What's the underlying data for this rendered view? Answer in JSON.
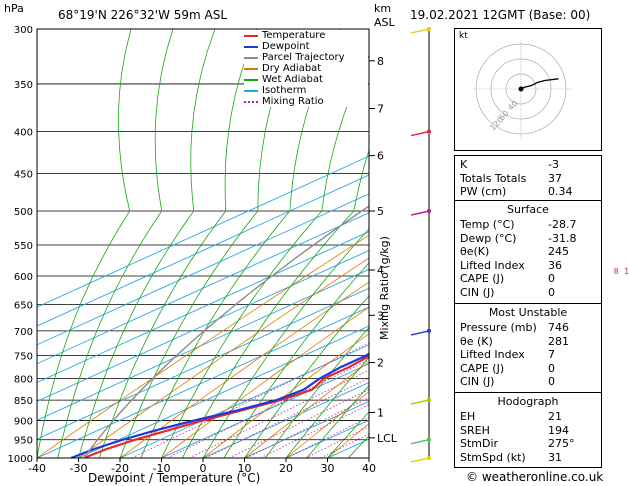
{
  "header": {
    "hpa_label": "hPa",
    "location": "68°19'N  226°32'W  59m  ASL",
    "km_label": "km",
    "asl_label": "ASL",
    "datetime": "19.02.2021 12GMT (Base: 00)"
  },
  "footer": {
    "credit": "© weatheronline.co.uk"
  },
  "legend": [
    {
      "label": "Temperature",
      "color": "#e8272c"
    },
    {
      "label": "Dewpoint",
      "color": "#2139d4"
    },
    {
      "label": "Parcel Trajectory",
      "color": "#8c8c8c"
    },
    {
      "label": "Dry Adiabat",
      "color": "#e07b00"
    },
    {
      "label": "Wet Adiabat",
      "color": "#15a815"
    },
    {
      "label": "Isotherm",
      "color": "#27a7e0"
    },
    {
      "label": "Mixing Ratio",
      "color": "#c01c9c"
    }
  ],
  "chart_data": {
    "type": "line",
    "xlabel": "Dewpoint / Temperature (°C)",
    "ylabel_right": "Mixing Ratio (g/kg)",
    "x_ticks": [
      -40,
      -30,
      -20,
      -10,
      0,
      10,
      20,
      30,
      40
    ],
    "xlim": [
      -40,
      40
    ],
    "pressure_levels": [
      300,
      350,
      400,
      450,
      500,
      550,
      600,
      650,
      700,
      750,
      800,
      850,
      900,
      950,
      1000
    ],
    "ylim_hpa": [
      1000,
      300
    ],
    "km_ticks": [
      {
        "label": "8",
        "p": 328
      },
      {
        "label": "7",
        "p": 375
      },
      {
        "label": "6",
        "p": 428
      },
      {
        "label": "5",
        "p": 500
      },
      {
        "label": "4",
        "p": 590
      },
      {
        "label": "3",
        "p": 670
      },
      {
        "label": "2",
        "p": 765
      },
      {
        "label": "1",
        "p": 880
      },
      {
        "label": "LCL",
        "p": 945
      }
    ],
    "mixing_ratio_labels": [
      {
        "label": "1",
        "value": 1
      },
      {
        "label": "2",
        "value": 2
      },
      {
        "label": "3",
        "value": 3
      },
      {
        "label": "4",
        "value": 4
      },
      {
        "label": "6",
        "value": 6
      },
      {
        "label": "8",
        "value": 8
      },
      {
        "label": "10",
        "value": 10
      },
      {
        "label": "15",
        "value": 15
      },
      {
        "label": "20",
        "value": 20
      },
      {
        "label": "25",
        "value": 25
      }
    ],
    "series": [
      {
        "name": "Temperature",
        "color": "#e8272c",
        "points": [
          [
            1000,
            -28.7
          ],
          [
            975,
            -28
          ],
          [
            950,
            -26
          ],
          [
            925,
            -23
          ],
          [
            900,
            -20
          ],
          [
            875,
            -16
          ],
          [
            850,
            -12
          ],
          [
            825,
            -10
          ],
          [
            800,
            -13
          ],
          [
            775,
            -13
          ],
          [
            750,
            -14
          ],
          [
            725,
            -15
          ],
          [
            700,
            -17
          ],
          [
            650,
            -22
          ],
          [
            600,
            -27
          ],
          [
            550,
            -33
          ],
          [
            500,
            -38
          ],
          [
            450,
            -43
          ],
          [
            400,
            -48
          ],
          [
            350,
            -54
          ],
          [
            300,
            -59
          ]
        ]
      },
      {
        "name": "Dewpoint",
        "color": "#2139d4",
        "points": [
          [
            1000,
            -31.8
          ],
          [
            975,
            -31
          ],
          [
            950,
            -29
          ],
          [
            925,
            -26
          ],
          [
            900,
            -22
          ],
          [
            875,
            -17
          ],
          [
            850,
            -13
          ],
          [
            825,
            -12
          ],
          [
            800,
            -14
          ],
          [
            775,
            -15
          ],
          [
            750,
            -15
          ],
          [
            725,
            -17
          ],
          [
            700,
            -20
          ],
          [
            650,
            -25
          ],
          [
            600,
            -30
          ],
          [
            550,
            -36
          ],
          [
            500,
            -42
          ],
          [
            450,
            -47
          ],
          [
            400,
            -53
          ],
          [
            350,
            -58
          ],
          [
            300,
            -63
          ]
        ]
      }
    ],
    "winds_y_p": [
      300,
      400,
      500,
      700,
      850,
      950,
      1000
    ]
  },
  "hodograph": {
    "unit_label": "kt",
    "ring_labels": [
      "40",
      "60",
      "120"
    ],
    "points": [
      [
        0,
        0
      ],
      [
        2,
        1
      ],
      [
        6,
        2
      ],
      [
        10,
        4
      ],
      [
        14,
        5
      ],
      [
        22,
        6
      ]
    ]
  },
  "indices": {
    "rows": [
      {
        "k": "K",
        "v": "-3"
      },
      {
        "k": "Totals Totals",
        "v": "37"
      },
      {
        "k": "PW (cm)",
        "v": "0.34"
      }
    ]
  },
  "surface": {
    "title": "Surface",
    "rows": [
      {
        "k": "Temp (°C)",
        "v": "-28.7"
      },
      {
        "k": "Dewp (°C)",
        "v": "-31.8"
      },
      {
        "k": "θe(K)",
        "v": "245"
      },
      {
        "k": "Lifted Index",
        "v": "36"
      },
      {
        "k": "CAPE (J)",
        "v": "0"
      },
      {
        "k": "CIN (J)",
        "v": "0"
      }
    ]
  },
  "most_unstable": {
    "title": "Most Unstable",
    "rows": [
      {
        "k": "Pressure (mb)",
        "v": "746"
      },
      {
        "k": "θe (K)",
        "v": "281"
      },
      {
        "k": "Lifted Index",
        "v": "7"
      },
      {
        "k": "CAPE (J)",
        "v": "0"
      },
      {
        "k": "CIN (J)",
        "v": "0"
      }
    ]
  },
  "hodo_table": {
    "title": "Hodograph",
    "rows": [
      {
        "k": "EH",
        "v": "21"
      },
      {
        "k": "SREH",
        "v": "194"
      },
      {
        "k": "StmDir",
        "v": "275°"
      },
      {
        "k": "StmSpd (kt)",
        "v": "31"
      }
    ]
  }
}
